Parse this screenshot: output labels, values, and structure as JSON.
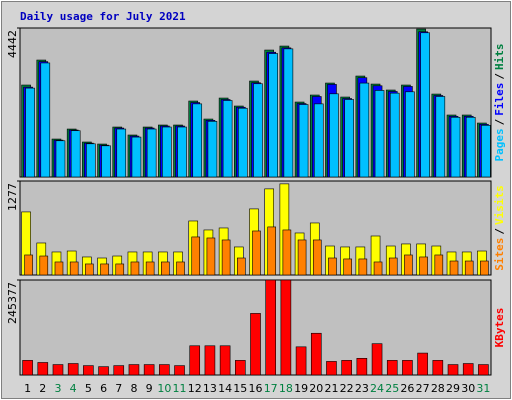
{
  "chart_data": [
    {
      "type": "bar",
      "title": "Daily usage for July 2021",
      "ylim": [
        0,
        4442
      ],
      "yticks": [
        4442
      ],
      "legend_separator": "/",
      "series": [
        {
          "name": "Hits",
          "color": "#008040",
          "values": [
            2742,
            3487,
            1132,
            1430,
            1043,
            983,
            1490,
            1252,
            1490,
            1550,
            1550,
            2265,
            1728,
            2354,
            2116,
            2861,
            3785,
            3904,
            2235,
            2444,
            2801,
            2384,
            3010,
            2771,
            2593,
            2742,
            4410,
            2473,
            1848,
            1848,
            1609
          ]
        },
        {
          "name": "Files",
          "color": "#0000ff",
          "values": [
            2680,
            3440,
            1100,
            1400,
            1010,
            950,
            1460,
            1220,
            1460,
            1520,
            1520,
            2220,
            1690,
            2310,
            2080,
            2810,
            3720,
            3850,
            2190,
            2400,
            2760,
            2340,
            2960,
            2720,
            2550,
            2700,
            4330,
            2430,
            1810,
            1810,
            1570
          ]
        },
        {
          "name": "Pages",
          "color": "#00c0ff",
          "values": [
            2650,
            3400,
            1080,
            1380,
            990,
            930,
            1430,
            1190,
            1430,
            1490,
            1490,
            2180,
            1660,
            2280,
            2050,
            2780,
            3680,
            3820,
            2160,
            2180,
            2480,
            2310,
            2800,
            2580,
            2500,
            2540,
            4300,
            2400,
            1780,
            1780,
            1540
          ]
        }
      ]
    },
    {
      "type": "bar",
      "ylim": [
        0,
        1277
      ],
      "yticks": [
        1277
      ],
      "legend_separator": "/",
      "series": [
        {
          "name": "Visits",
          "color": "#ffff00",
          "values": [
            857,
            435,
            313,
            326,
            245,
            231,
            258,
            313,
            313,
            313,
            313,
            734,
            612,
            639,
            381,
            898,
            1170,
            1238,
            571,
            707,
            394,
            381,
            381,
            530,
            394,
            422,
            422,
            394,
            313,
            313,
            326
          ]
        },
        {
          "name": "Sites",
          "color": "#ff8000",
          "values": [
            272,
            258,
            177,
            177,
            150,
            150,
            150,
            177,
            177,
            177,
            177,
            517,
            503,
            476,
            231,
            598,
            653,
            612,
            476,
            476,
            231,
            218,
            218,
            177,
            231,
            272,
            245,
            272,
            190,
            190,
            190
          ]
        }
      ]
    },
    {
      "type": "bar",
      "ylim": [
        0,
        245377
      ],
      "yticks": [
        245377
      ],
      "series": [
        {
          "name": "KBytes",
          "color": "#ff0000",
          "values": [
            37744,
            32352,
            26960,
            29656,
            24264,
            21568,
            24264,
            26960,
            26960,
            26960,
            24264,
            75488,
            75488,
            75488,
            37744,
            159064,
            245377,
            245377,
            72792,
            107840,
            35048,
            37744,
            43136,
            80880,
            37744,
            37744,
            56616,
            37744,
            26960,
            29656,
            26960
          ]
        }
      ],
      "categories": [
        "1",
        "2",
        "3",
        "4",
        "5",
        "6",
        "7",
        "8",
        "9",
        "10",
        "11",
        "12",
        "13",
        "14",
        "15",
        "16",
        "17",
        "18",
        "19",
        "20",
        "21",
        "22",
        "23",
        "24",
        "25",
        "26",
        "27",
        "28",
        "29",
        "30",
        "31"
      ],
      "category_colors": [
        "#000000",
        "#000000",
        "#008040",
        "#008040",
        "#000000",
        "#000000",
        "#000000",
        "#000000",
        "#000000",
        "#008040",
        "#008040",
        "#000000",
        "#000000",
        "#000000",
        "#000000",
        "#000000",
        "#008040",
        "#008040",
        "#000000",
        "#000000",
        "#000000",
        "#000000",
        "#000000",
        "#008040",
        "#008040",
        "#000000",
        "#000000",
        "#000000",
        "#000000",
        "#000000",
        "#008040"
      ]
    }
  ]
}
